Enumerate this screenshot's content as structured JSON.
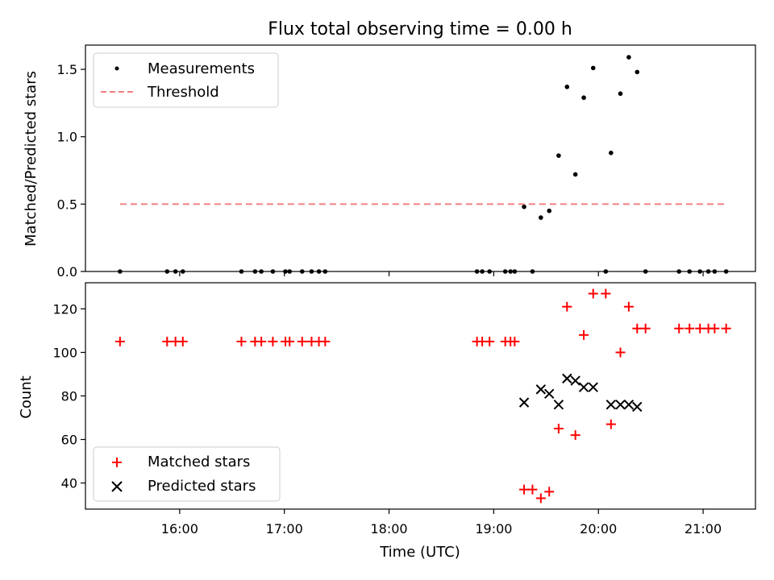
{
  "chart_data": [
    {
      "type": "scatter",
      "title": "Flux total observing time = 0.00 h",
      "xlabel": "",
      "ylabel": "Matched/Predicted stars",
      "xlim_hours": [
        15.1,
        21.5
      ],
      "ylim": [
        0,
        1.68
      ],
      "yticks": [
        0.0,
        0.5,
        1.0,
        1.5
      ],
      "ytick_labels": [
        "0.0",
        "0.5",
        "1.0",
        "1.5"
      ],
      "legend_position": "top-left",
      "series": [
        {
          "name": "Measurements",
          "marker": "dot",
          "color": "#000000",
          "x_hours": [
            15.43,
            15.88,
            15.96,
            16.03,
            16.59,
            16.72,
            16.78,
            16.89,
            17.01,
            17.05,
            17.17,
            17.26,
            17.33,
            17.39,
            18.84,
            18.89,
            18.96,
            19.11,
            19.16,
            19.2,
            19.29,
            19.37,
            19.45,
            19.53,
            19.62,
            19.7,
            19.78,
            19.86,
            19.95,
            20.07,
            20.12,
            20.21,
            20.29,
            20.37,
            20.45,
            20.77,
            20.87,
            20.97,
            21.05,
            21.11,
            21.22
          ],
          "y": [
            0,
            0,
            0,
            0,
            0,
            0,
            0,
            0,
            0,
            0,
            0,
            0,
            0,
            0,
            0,
            0,
            0,
            0,
            0,
            0,
            0.48,
            0,
            0.4,
            0.45,
            0.86,
            1.37,
            0.72,
            1.29,
            1.51,
            0,
            0.88,
            1.32,
            1.59,
            1.48,
            0,
            0,
            0,
            0,
            0,
            0,
            0
          ]
        },
        {
          "name": "Threshold",
          "line": "dashed",
          "color": "#f08080",
          "x_hours": [
            15.43,
            21.22
          ],
          "y": [
            0.5,
            0.5
          ]
        }
      ]
    },
    {
      "type": "scatter",
      "title": "",
      "xlabel": "Time (UTC)",
      "ylabel": "Count",
      "xlim_hours": [
        15.1,
        21.5
      ],
      "ylim": [
        28,
        132
      ],
      "yticks": [
        40,
        60,
        80,
        100,
        120
      ],
      "ytick_labels": [
        "40",
        "60",
        "80",
        "100",
        "120"
      ],
      "xticks_hours": [
        16,
        17,
        18,
        19,
        20,
        21
      ],
      "xtick_labels": [
        "16:00",
        "17:00",
        "18:00",
        "19:00",
        "20:00",
        "21:00"
      ],
      "legend_position": "bottom-left",
      "series": [
        {
          "name": "Matched stars",
          "marker": "plus",
          "color": "#ff0000",
          "x_hours": [
            15.43,
            15.88,
            15.96,
            16.03,
            16.59,
            16.72,
            16.78,
            16.89,
            17.01,
            17.05,
            17.17,
            17.26,
            17.33,
            17.39,
            18.84,
            18.89,
            18.96,
            19.11,
            19.16,
            19.2,
            19.29,
            19.37,
            19.45,
            19.53,
            19.62,
            19.7,
            19.78,
            19.86,
            19.95,
            20.07,
            20.12,
            20.21,
            20.29,
            20.37,
            20.45,
            20.77,
            20.87,
            20.97,
            21.05,
            21.11,
            21.22
          ],
          "y": [
            105,
            105,
            105,
            105,
            105,
            105,
            105,
            105,
            105,
            105,
            105,
            105,
            105,
            105,
            105,
            105,
            105,
            105,
            105,
            105,
            37,
            37,
            33,
            36,
            65,
            121,
            62,
            108,
            127,
            127,
            67,
            100,
            121,
            111,
            111,
            111,
            111,
            111,
            111,
            111,
            111
          ]
        },
        {
          "name": "Predicted stars",
          "marker": "x",
          "color": "#000000",
          "x_hours": [
            19.29,
            19.45,
            19.53,
            19.62,
            19.7,
            19.78,
            19.86,
            19.95,
            20.12,
            20.21,
            20.29,
            20.37
          ],
          "y": [
            77,
            83,
            81,
            76,
            88,
            87,
            84,
            84,
            76,
            76,
            76,
            75
          ]
        }
      ]
    }
  ]
}
